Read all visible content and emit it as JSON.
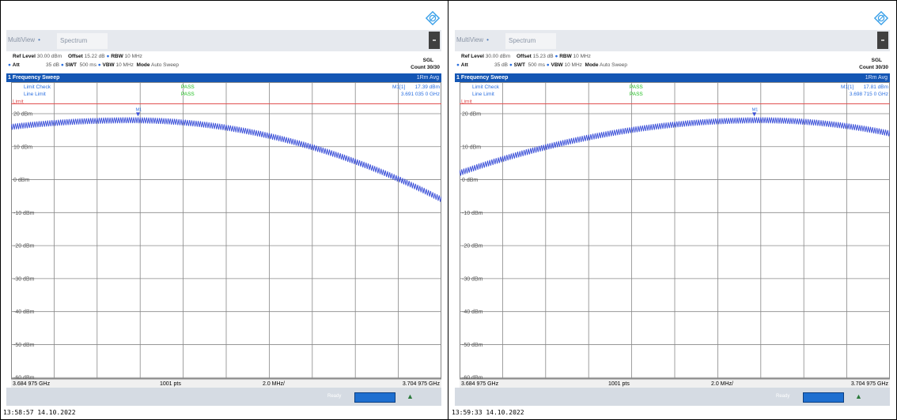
{
  "panels": [
    {
      "tab_multiview": "MultiView",
      "tab_spectrum": "Spectrum",
      "ref_level_label": "Ref Level",
      "ref_level_value": "30.00 dBm",
      "offset_label": "Offset",
      "offset_value": "15.22 dB",
      "rbw_label": "RBW",
      "rbw_value": "10 MHz",
      "att_label": "Att",
      "att_value": "35 dB",
      "swt_label": "SWT",
      "swt_value": "500 ms",
      "vbw_label": "VBW",
      "vbw_value": "10 MHz",
      "mode_label": "Mode",
      "mode_value": "Auto Sweep",
      "sgl": "SGL",
      "count": "Count 30/30",
      "sweep_title": "1 Frequency Sweep",
      "avg_label": "1Rm Avg",
      "limit_check_label": "Limit Check",
      "line_limit_label": "Line Limit",
      "limit_check_value": "PASS",
      "line_limit_value": "PASS",
      "marker_label": "M1[1]",
      "marker_level": "17.39 dBm",
      "marker_freq": "3.691 035 0 GHz",
      "marker_tag": "M1",
      "limit_tag": "Limit",
      "start_freq": "3.684 975 GHz",
      "points": "1001 pts",
      "span_div": "2.0 MHz/",
      "stop_freq": "3.704 975 GHz",
      "status_ready": "Ready",
      "timestamp": "13:58:57  14.10.2022",
      "curve": {
        "peak_div": 2.8,
        "peak_db": 18.0,
        "start_db": 16.0,
        "end_db": -6.0
      },
      "marker_div": 2.95
    },
    {
      "tab_multiview": "MultiView",
      "tab_spectrum": "Spectrum",
      "ref_level_label": "Ref Level",
      "ref_level_value": "30.00 dBm",
      "offset_label": "Offset",
      "offset_value": "15.23 dB",
      "rbw_label": "RBW",
      "rbw_value": "10 MHz",
      "att_label": "Att",
      "att_value": "35 dB",
      "swt_label": "SWT",
      "swt_value": "500 ms",
      "vbw_label": "VBW",
      "vbw_value": "10 MHz",
      "mode_label": "Mode",
      "mode_value": "Auto Sweep",
      "sgl": "SGL",
      "count": "Count 30/30",
      "sweep_title": "1 Frequency Sweep",
      "avg_label": "1Rm Avg",
      "limit_check_label": "Limit Check",
      "line_limit_label": "Line Limit",
      "limit_check_value": "PASS",
      "line_limit_value": "PASS",
      "marker_label": "M1[1]",
      "marker_level": "17.81 dBm",
      "marker_freq": "3.698 715 0 GHz",
      "marker_tag": "M1",
      "limit_tag": "Limit",
      "start_freq": "3.684 975 GHz",
      "points": "1001 pts",
      "span_div": "2.0 MHz/",
      "stop_freq": "3.704 975 GHz",
      "status_ready": "Ready",
      "timestamp": "13:59:33  14.10.2022",
      "curve": {
        "peak_div": 7.0,
        "peak_db": 18.0,
        "start_db": 2.0,
        "end_db": 14.0
      },
      "marker_div": 6.85
    }
  ],
  "axis": {
    "y_labels": [
      "20 dBm",
      "10 dBm",
      "0 dBm",
      "-10 dBm",
      "-20 dBm",
      "-30 dBm",
      "-40 dBm",
      "-50 dBm",
      "-60 dBm"
    ],
    "y_max": 20,
    "y_min": -70,
    "limit_db": 23
  },
  "colors": {
    "trace": "#3a4fd8",
    "limit_line": "#e05050",
    "pass": "#22c022",
    "info_blue": "#2a6fe0",
    "header_blue": "#1456b4"
  }
}
